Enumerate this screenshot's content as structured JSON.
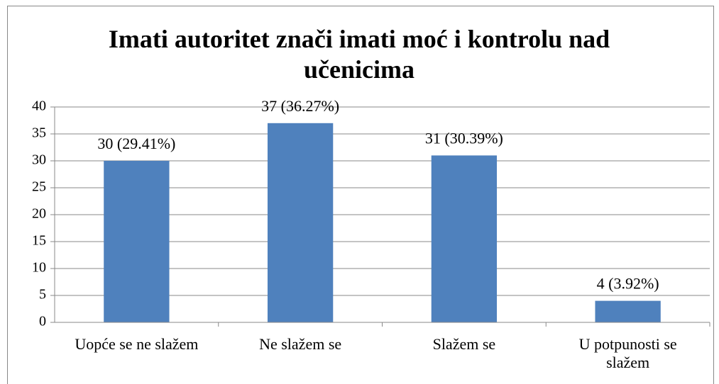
{
  "chart_data": {
    "type": "bar",
    "title": "Imati autoritet znači imati moć i kontrolu nad učenicima",
    "categories": [
      "Uopće se ne slažem",
      "Ne slažem se",
      "Slažem se",
      "U potpunosti se slažem"
    ],
    "values": [
      30,
      37,
      31,
      4
    ],
    "value_labels": [
      "30 (29.41%)",
      "37 (36.27%)",
      "31 (30.39%)",
      "4 (3.92%)"
    ],
    "color": "#4f81bd",
    "ylim": [
      0,
      40
    ],
    "yticks": [
      0,
      5,
      10,
      15,
      20,
      25,
      30,
      35,
      40
    ],
    "grid": true
  }
}
